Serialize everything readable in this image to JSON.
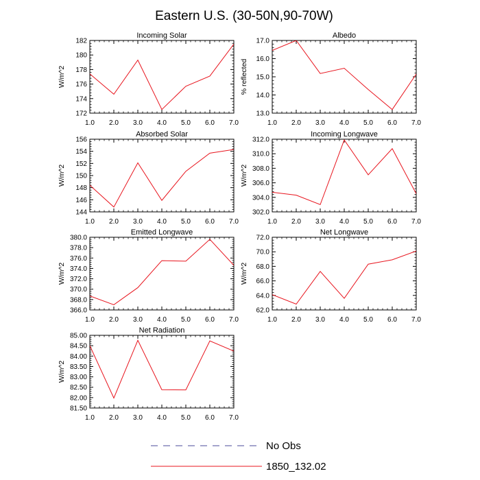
{
  "title": "Eastern U.S. (30-50N,90-70W)",
  "legend": [
    {
      "label": "No Obs",
      "style": "dashed",
      "color": "#4a4a9a"
    },
    {
      "label": "1850_132.02",
      "style": "solid",
      "color": "#e8141d"
    }
  ],
  "chart_data": [
    {
      "type": "line",
      "title": "Incoming Solar",
      "ylabel": "W/m^2",
      "xlim": [
        1,
        7
      ],
      "ylim": [
        172,
        182
      ],
      "xticks": [
        "1.0",
        "2.0",
        "3.0",
        "4.0",
        "5.0",
        "6.0",
        "7.0"
      ],
      "yticks": [
        "172",
        "174",
        "176",
        "178",
        "180",
        "182"
      ],
      "x": [
        1,
        2,
        3,
        4,
        5,
        6,
        7
      ],
      "series": [
        {
          "name": "1850_132.02",
          "color": "#e8141d",
          "values": [
            177.4,
            174.6,
            179.3,
            172.5,
            175.7,
            177.1,
            181.5
          ]
        }
      ]
    },
    {
      "type": "line",
      "title": "Albedo",
      "ylabel": "% reflected",
      "xlim": [
        1,
        7
      ],
      "ylim": [
        13,
        17
      ],
      "xticks": [
        "1.0",
        "2.0",
        "3.0",
        "4.0",
        "5.0",
        "6.0",
        "7.0"
      ],
      "yticks": [
        "13.0",
        "14.0",
        "15.0",
        "16.0",
        "17.0"
      ],
      "x": [
        1,
        2,
        3,
        4,
        5,
        6,
        7
      ],
      "series": [
        {
          "name": "1850_132.02",
          "color": "#e8141d",
          "values": [
            16.45,
            17.0,
            15.18,
            15.47,
            14.3,
            13.2,
            15.15
          ]
        }
      ]
    },
    {
      "type": "line",
      "title": "Absorbed Solar",
      "ylabel": "W/m^2",
      "xlim": [
        1,
        7
      ],
      "ylim": [
        144,
        156
      ],
      "xticks": [
        "1.0",
        "2.0",
        "3.0",
        "4.0",
        "5.0",
        "6.0",
        "7.0"
      ],
      "yticks": [
        "144",
        "146",
        "148",
        "150",
        "152",
        "154",
        "156"
      ],
      "x": [
        1,
        2,
        3,
        4,
        5,
        6,
        7
      ],
      "series": [
        {
          "name": "1850_132.02",
          "color": "#e8141d",
          "values": [
            148.4,
            144.8,
            152.1,
            145.9,
            150.7,
            153.7,
            154.3
          ]
        }
      ]
    },
    {
      "type": "line",
      "title": "Incoming Longwave",
      "ylabel": "W/m^2",
      "xlim": [
        1,
        7
      ],
      "ylim": [
        302,
        312
      ],
      "xticks": [
        "1.0",
        "2.0",
        "3.0",
        "4.0",
        "5.0",
        "6.0",
        "7.0"
      ],
      "yticks": [
        "302.0",
        "304.0",
        "306.0",
        "308.0",
        "310.0",
        "312.0"
      ],
      "x": [
        1,
        2,
        3,
        4,
        5,
        6,
        7
      ],
      "series": [
        {
          "name": "1850_132.02",
          "color": "#e8141d",
          "values": [
            304.7,
            304.3,
            303.0,
            311.9,
            307.1,
            310.7,
            304.5
          ]
        }
      ]
    },
    {
      "type": "line",
      "title": "Emitted Longwave",
      "ylabel": "W/m^2",
      "xlim": [
        1,
        7
      ],
      "ylim": [
        366,
        380
      ],
      "xticks": [
        "1.0",
        "2.0",
        "3.0",
        "4.0",
        "5.0",
        "6.0",
        "7.0"
      ],
      "yticks": [
        "366.0",
        "368.0",
        "370.0",
        "372.0",
        "374.0",
        "376.0",
        "378.0",
        "380.0"
      ],
      "x": [
        1,
        2,
        3,
        4,
        5,
        6,
        7
      ],
      "series": [
        {
          "name": "1850_132.02",
          "color": "#e8141d",
          "values": [
            368.7,
            367.0,
            370.3,
            375.5,
            375.4,
            379.6,
            374.6
          ]
        }
      ]
    },
    {
      "type": "line",
      "title": "Net Longwave",
      "ylabel": "W/m^2",
      "xlim": [
        1,
        7
      ],
      "ylim": [
        62,
        72
      ],
      "xticks": [
        "1.0",
        "2.0",
        "3.0",
        "4.0",
        "5.0",
        "6.0",
        "7.0"
      ],
      "yticks": [
        "62.0",
        "64.0",
        "66.0",
        "68.0",
        "70.0",
        "72.0"
      ],
      "x": [
        1,
        2,
        3,
        4,
        5,
        6,
        7
      ],
      "series": [
        {
          "name": "1850_132.02",
          "color": "#e8141d",
          "values": [
            64.1,
            62.8,
            67.3,
            63.6,
            68.3,
            68.9,
            70.1
          ]
        }
      ]
    },
    {
      "type": "line",
      "title": "Net Radiation",
      "ylabel": "W/m^2",
      "xlim": [
        1,
        7
      ],
      "ylim": [
        81.5,
        85
      ],
      "xticks": [
        "1.0",
        "2.0",
        "3.0",
        "4.0",
        "5.0",
        "6.0",
        "7.0"
      ],
      "yticks": [
        "81.50",
        "82.00",
        "82.50",
        "83.00",
        "83.50",
        "84.00",
        "84.50",
        "85.00"
      ],
      "x": [
        1,
        2,
        3,
        4,
        5,
        6,
        7
      ],
      "series": [
        {
          "name": "1850_132.02",
          "color": "#e8141d",
          "values": [
            84.5,
            81.98,
            84.76,
            82.38,
            82.37,
            84.73,
            84.24
          ]
        }
      ]
    }
  ]
}
